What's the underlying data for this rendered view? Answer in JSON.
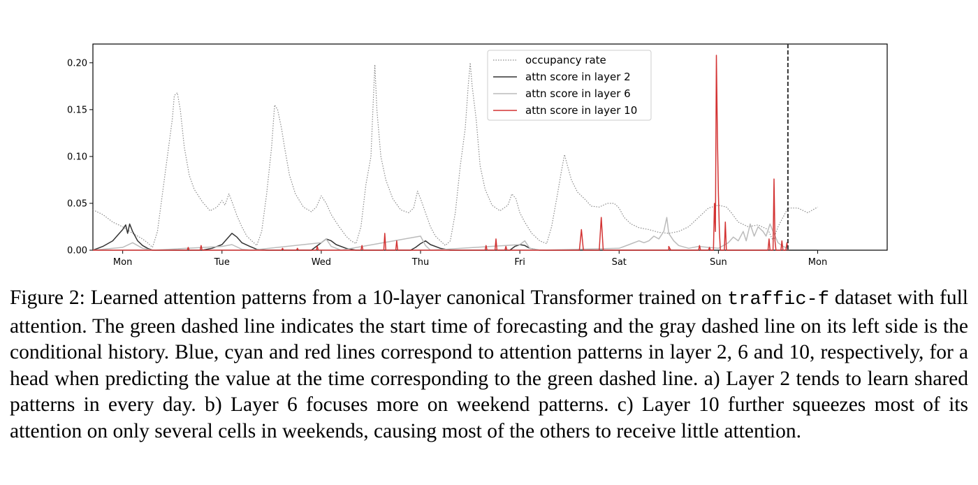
{
  "chart_data": {
    "type": "line",
    "x_ticks": [
      "Mon",
      "Tue",
      "Wed",
      "Thu",
      "Fri",
      "Sat",
      "Sun",
      "Mon"
    ],
    "y_ticks": [
      "0.00",
      "0.05",
      "0.10",
      "0.15",
      "0.20"
    ],
    "xlim": [
      -0.3,
      7.7
    ],
    "ylim": [
      0,
      0.22
    ],
    "legend_position": "top-center",
    "forecast_start_x": 6.7,
    "series": [
      {
        "name": "occupancy rate",
        "style": "dotted",
        "color": "#8a8a8a",
        "points": [
          [
            -0.3,
            0.043
          ],
          [
            -0.2,
            0.038
          ],
          [
            -0.1,
            0.03
          ],
          [
            0,
            0.025
          ],
          [
            0.1,
            0.018
          ],
          [
            0.2,
            0.012
          ],
          [
            0.25,
            0.008
          ],
          [
            0.3,
            0.003
          ],
          [
            0.35,
            0.02
          ],
          [
            0.4,
            0.06
          ],
          [
            0.45,
            0.1
          ],
          [
            0.5,
            0.14
          ],
          [
            0.52,
            0.165
          ],
          [
            0.55,
            0.168
          ],
          [
            0.58,
            0.15
          ],
          [
            0.62,
            0.11
          ],
          [
            0.67,
            0.08
          ],
          [
            0.72,
            0.065
          ],
          [
            0.8,
            0.052
          ],
          [
            0.88,
            0.042
          ],
          [
            0.95,
            0.046
          ],
          [
            1.0,
            0.053
          ],
          [
            1.03,
            0.048
          ],
          [
            1.07,
            0.06
          ],
          [
            1.1,
            0.052
          ],
          [
            1.15,
            0.037
          ],
          [
            1.2,
            0.025
          ],
          [
            1.25,
            0.015
          ],
          [
            1.3,
            0.01
          ],
          [
            1.35,
            0.005
          ],
          [
            1.4,
            0.02
          ],
          [
            1.45,
            0.06
          ],
          [
            1.5,
            0.11
          ],
          [
            1.53,
            0.155
          ],
          [
            1.56,
            0.15
          ],
          [
            1.6,
            0.13
          ],
          [
            1.63,
            0.11
          ],
          [
            1.68,
            0.08
          ],
          [
            1.74,
            0.06
          ],
          [
            1.82,
            0.046
          ],
          [
            1.9,
            0.041
          ],
          [
            1.95,
            0.046
          ],
          [
            2.0,
            0.058
          ],
          [
            2.05,
            0.05
          ],
          [
            2.1,
            0.038
          ],
          [
            2.18,
            0.025
          ],
          [
            2.25,
            0.015
          ],
          [
            2.3,
            0.01
          ],
          [
            2.35,
            0.007
          ],
          [
            2.4,
            0.025
          ],
          [
            2.45,
            0.07
          ],
          [
            2.5,
            0.1
          ],
          [
            2.52,
            0.15
          ],
          [
            2.54,
            0.198
          ],
          [
            2.56,
            0.15
          ],
          [
            2.6,
            0.1
          ],
          [
            2.65,
            0.075
          ],
          [
            2.72,
            0.055
          ],
          [
            2.8,
            0.043
          ],
          [
            2.88,
            0.04
          ],
          [
            2.93,
            0.045
          ],
          [
            2.97,
            0.063
          ],
          [
            3.0,
            0.055
          ],
          [
            3.05,
            0.04
          ],
          [
            3.1,
            0.025
          ],
          [
            3.15,
            0.015
          ],
          [
            3.2,
            0.01
          ],
          [
            3.25,
            0.005
          ],
          [
            3.3,
            0.01
          ],
          [
            3.35,
            0.04
          ],
          [
            3.4,
            0.09
          ],
          [
            3.45,
            0.13
          ],
          [
            3.48,
            0.175
          ],
          [
            3.5,
            0.2
          ],
          [
            3.52,
            0.175
          ],
          [
            3.56,
            0.14
          ],
          [
            3.6,
            0.09
          ],
          [
            3.65,
            0.065
          ],
          [
            3.72,
            0.048
          ],
          [
            3.8,
            0.042
          ],
          [
            3.88,
            0.048
          ],
          [
            3.92,
            0.06
          ],
          [
            3.96,
            0.055
          ],
          [
            4.0,
            0.04
          ],
          [
            4.05,
            0.03
          ],
          [
            4.12,
            0.018
          ],
          [
            4.2,
            0.01
          ],
          [
            4.27,
            0.007
          ],
          [
            4.32,
            0.025
          ],
          [
            4.38,
            0.06
          ],
          [
            4.42,
            0.085
          ],
          [
            4.45,
            0.102
          ],
          [
            4.48,
            0.09
          ],
          [
            4.52,
            0.075
          ],
          [
            4.58,
            0.062
          ],
          [
            4.65,
            0.055
          ],
          [
            4.72,
            0.047
          ],
          [
            4.8,
            0.046
          ],
          [
            4.88,
            0.05
          ],
          [
            4.95,
            0.05
          ],
          [
            5.0,
            0.045
          ],
          [
            5.05,
            0.035
          ],
          [
            5.12,
            0.028
          ],
          [
            5.2,
            0.024
          ],
          [
            5.3,
            0.022
          ],
          [
            5.4,
            0.019
          ],
          [
            5.5,
            0.018
          ],
          [
            5.6,
            0.02
          ],
          [
            5.7,
            0.025
          ],
          [
            5.8,
            0.035
          ],
          [
            5.9,
            0.045
          ],
          [
            6.0,
            0.048
          ],
          [
            6.08,
            0.046
          ],
          [
            6.13,
            0.04
          ],
          [
            6.2,
            0.03
          ],
          [
            6.3,
            0.025
          ],
          [
            6.4,
            0.027
          ],
          [
            6.5,
            0.022
          ],
          [
            6.55,
            0.01
          ],
          [
            6.6,
            0.025
          ],
          [
            6.7,
            0.045
          ],
          [
            6.8,
            0.045
          ],
          [
            6.9,
            0.04
          ],
          [
            7.0,
            0.046
          ]
        ]
      },
      {
        "name": "attn score in layer 2",
        "style": "solid",
        "color": "#333333",
        "points": [
          [
            -0.3,
            0.0
          ],
          [
            -0.25,
            0.002
          ],
          [
            -0.2,
            0.004
          ],
          [
            -0.15,
            0.007
          ],
          [
            -0.1,
            0.01
          ],
          [
            -0.05,
            0.016
          ],
          [
            0,
            0.022
          ],
          [
            0.03,
            0.027
          ],
          [
            0.05,
            0.018
          ],
          [
            0.07,
            0.028
          ],
          [
            0.1,
            0.02
          ],
          [
            0.15,
            0.01
          ],
          [
            0.2,
            0.005
          ],
          [
            0.25,
            0.002
          ],
          [
            0.3,
            0.0
          ],
          [
            0.8,
            0.0
          ],
          [
            0.9,
            0.002
          ],
          [
            1.0,
            0.006
          ],
          [
            1.05,
            0.012
          ],
          [
            1.1,
            0.018
          ],
          [
            1.15,
            0.014
          ],
          [
            1.2,
            0.008
          ],
          [
            1.28,
            0.004
          ],
          [
            1.35,
            0.001
          ],
          [
            1.45,
            0.0
          ],
          [
            1.9,
            0.0
          ],
          [
            1.95,
            0.004
          ],
          [
            2.0,
            0.008
          ],
          [
            2.05,
            0.012
          ],
          [
            2.1,
            0.01
          ],
          [
            2.15,
            0.006
          ],
          [
            2.25,
            0.002
          ],
          [
            2.35,
            0.0
          ],
          [
            2.9,
            0.0
          ],
          [
            2.95,
            0.003
          ],
          [
            3.0,
            0.007
          ],
          [
            3.05,
            0.01
          ],
          [
            3.1,
            0.006
          ],
          [
            3.2,
            0.002
          ],
          [
            3.3,
            0.0
          ],
          [
            3.9,
            0.0
          ],
          [
            3.95,
            0.004
          ],
          [
            4.0,
            0.006
          ],
          [
            4.05,
            0.005
          ],
          [
            4.1,
            0.002
          ],
          [
            4.2,
            0.0
          ],
          [
            7.0,
            0.0
          ]
        ]
      },
      {
        "name": "attn score in layer 6",
        "style": "solid",
        "color": "#bbbbbb",
        "points": [
          [
            -0.3,
            0.0
          ],
          [
            0.0,
            0.003
          ],
          [
            0.1,
            0.008
          ],
          [
            0.2,
            0.002
          ],
          [
            0.3,
            0.0
          ],
          [
            1.0,
            0.004
          ],
          [
            1.1,
            0.006
          ],
          [
            1.2,
            0.001
          ],
          [
            1.3,
            0.0
          ],
          [
            2.0,
            0.008
          ],
          [
            2.05,
            0.012
          ],
          [
            2.1,
            0.004
          ],
          [
            2.2,
            0.0
          ],
          [
            3.0,
            0.015
          ],
          [
            3.05,
            0.005
          ],
          [
            3.1,
            0.0
          ],
          [
            4.0,
            0.006
          ],
          [
            4.05,
            0.01
          ],
          [
            4.1,
            0.002
          ],
          [
            4.2,
            0.0
          ],
          [
            5.0,
            0.002
          ],
          [
            5.1,
            0.006
          ],
          [
            5.2,
            0.01
          ],
          [
            5.25,
            0.008
          ],
          [
            5.3,
            0.01
          ],
          [
            5.35,
            0.015
          ],
          [
            5.4,
            0.012
          ],
          [
            5.45,
            0.02
          ],
          [
            5.48,
            0.035
          ],
          [
            5.5,
            0.018
          ],
          [
            5.55,
            0.01
          ],
          [
            5.6,
            0.005
          ],
          [
            5.7,
            0.002
          ],
          [
            5.8,
            0.004
          ],
          [
            5.9,
            0.003
          ],
          [
            6.0,
            0.002
          ],
          [
            6.1,
            0.008
          ],
          [
            6.15,
            0.014
          ],
          [
            6.2,
            0.01
          ],
          [
            6.25,
            0.02
          ],
          [
            6.28,
            0.01
          ],
          [
            6.32,
            0.028
          ],
          [
            6.36,
            0.015
          ],
          [
            6.4,
            0.025
          ],
          [
            6.45,
            0.02
          ],
          [
            6.48,
            0.015
          ],
          [
            6.52,
            0.028
          ],
          [
            6.55,
            0.02
          ],
          [
            6.6,
            0.008
          ],
          [
            6.65,
            0.004
          ],
          [
            6.7,
            0.002
          ]
        ]
      },
      {
        "name": "attn score in layer 10",
        "style": "solid",
        "color": "#d33333",
        "points": [
          [
            -0.3,
            0.0
          ],
          [
            0.65,
            0.0
          ],
          [
            0.66,
            0.003
          ],
          [
            0.67,
            0.0
          ],
          [
            0.78,
            0.0
          ],
          [
            0.79,
            0.005
          ],
          [
            0.8,
            0.0
          ],
          [
            1.6,
            0.0
          ],
          [
            1.61,
            0.002
          ],
          [
            1.62,
            0.0
          ],
          [
            1.75,
            0.0
          ],
          [
            1.76,
            0.002
          ],
          [
            1.77,
            0.0
          ],
          [
            1.95,
            0.0
          ],
          [
            1.96,
            0.004
          ],
          [
            1.97,
            0.0
          ],
          [
            2.4,
            0.0
          ],
          [
            2.41,
            0.005
          ],
          [
            2.42,
            0.0
          ],
          [
            2.63,
            0.0
          ],
          [
            2.64,
            0.018
          ],
          [
            2.65,
            0.0
          ],
          [
            2.75,
            0.0
          ],
          [
            2.76,
            0.01
          ],
          [
            2.77,
            0.0
          ],
          [
            3.65,
            0.0
          ],
          [
            3.66,
            0.005
          ],
          [
            3.67,
            0.0
          ],
          [
            3.75,
            0.0
          ],
          [
            3.76,
            0.012
          ],
          [
            3.77,
            0.0
          ],
          [
            3.85,
            0.0
          ],
          [
            3.86,
            0.004
          ],
          [
            3.87,
            0.0
          ],
          [
            4.6,
            0.0
          ],
          [
            4.62,
            0.022
          ],
          [
            4.64,
            0.0
          ],
          [
            4.8,
            0.0
          ],
          [
            4.82,
            0.035
          ],
          [
            4.84,
            0.0
          ],
          [
            5.5,
            0.0
          ],
          [
            5.5,
            0.004
          ],
          [
            5.52,
            0.0
          ],
          [
            5.8,
            0.0
          ],
          [
            5.81,
            0.005
          ],
          [
            5.82,
            0.0
          ],
          [
            5.9,
            0.0
          ],
          [
            5.91,
            0.003
          ],
          [
            5.92,
            0.0
          ],
          [
            5.95,
            0.0
          ],
          [
            5.96,
            0.05
          ],
          [
            5.97,
            0.02
          ],
          [
            5.98,
            0.208
          ],
          [
            5.99,
            0.12
          ],
          [
            6.0,
            0.06
          ],
          [
            6.01,
            0.02
          ],
          [
            6.02,
            0.0
          ],
          [
            6.06,
            0.0
          ],
          [
            6.07,
            0.03
          ],
          [
            6.08,
            0.0
          ],
          [
            6.5,
            0.0
          ],
          [
            6.51,
            0.012
          ],
          [
            6.52,
            0.0
          ],
          [
            6.55,
            0.0
          ],
          [
            6.56,
            0.076
          ],
          [
            6.57,
            0.01
          ],
          [
            6.58,
            0.0
          ],
          [
            6.63,
            0.0
          ],
          [
            6.64,
            0.01
          ],
          [
            6.65,
            0.0
          ],
          [
            6.68,
            0.0
          ],
          [
            6.69,
            0.008
          ],
          [
            6.7,
            0.0
          ]
        ]
      }
    ]
  },
  "caption": {
    "part1": "Figure 2: Learned attention patterns from a 10-layer canonical Transformer trained on ",
    "code": "traffic-f",
    "part2": " dataset with full attention. The green dashed line indicates the start time of forecasting and the gray dashed line on its left side is the conditional history. Blue, cyan and red lines correspond to attention patterns in layer 2, 6 and 10, respectively, for a head when predicting the value at the time corresponding to the green dashed line. a) Layer 2 tends to learn shared patterns in every day. b) Layer 6 focuses more on weekend patterns. c) Layer 10 further squeezes most of its attention on only several cells in weekends, causing most of the others to receive little attention."
  }
}
